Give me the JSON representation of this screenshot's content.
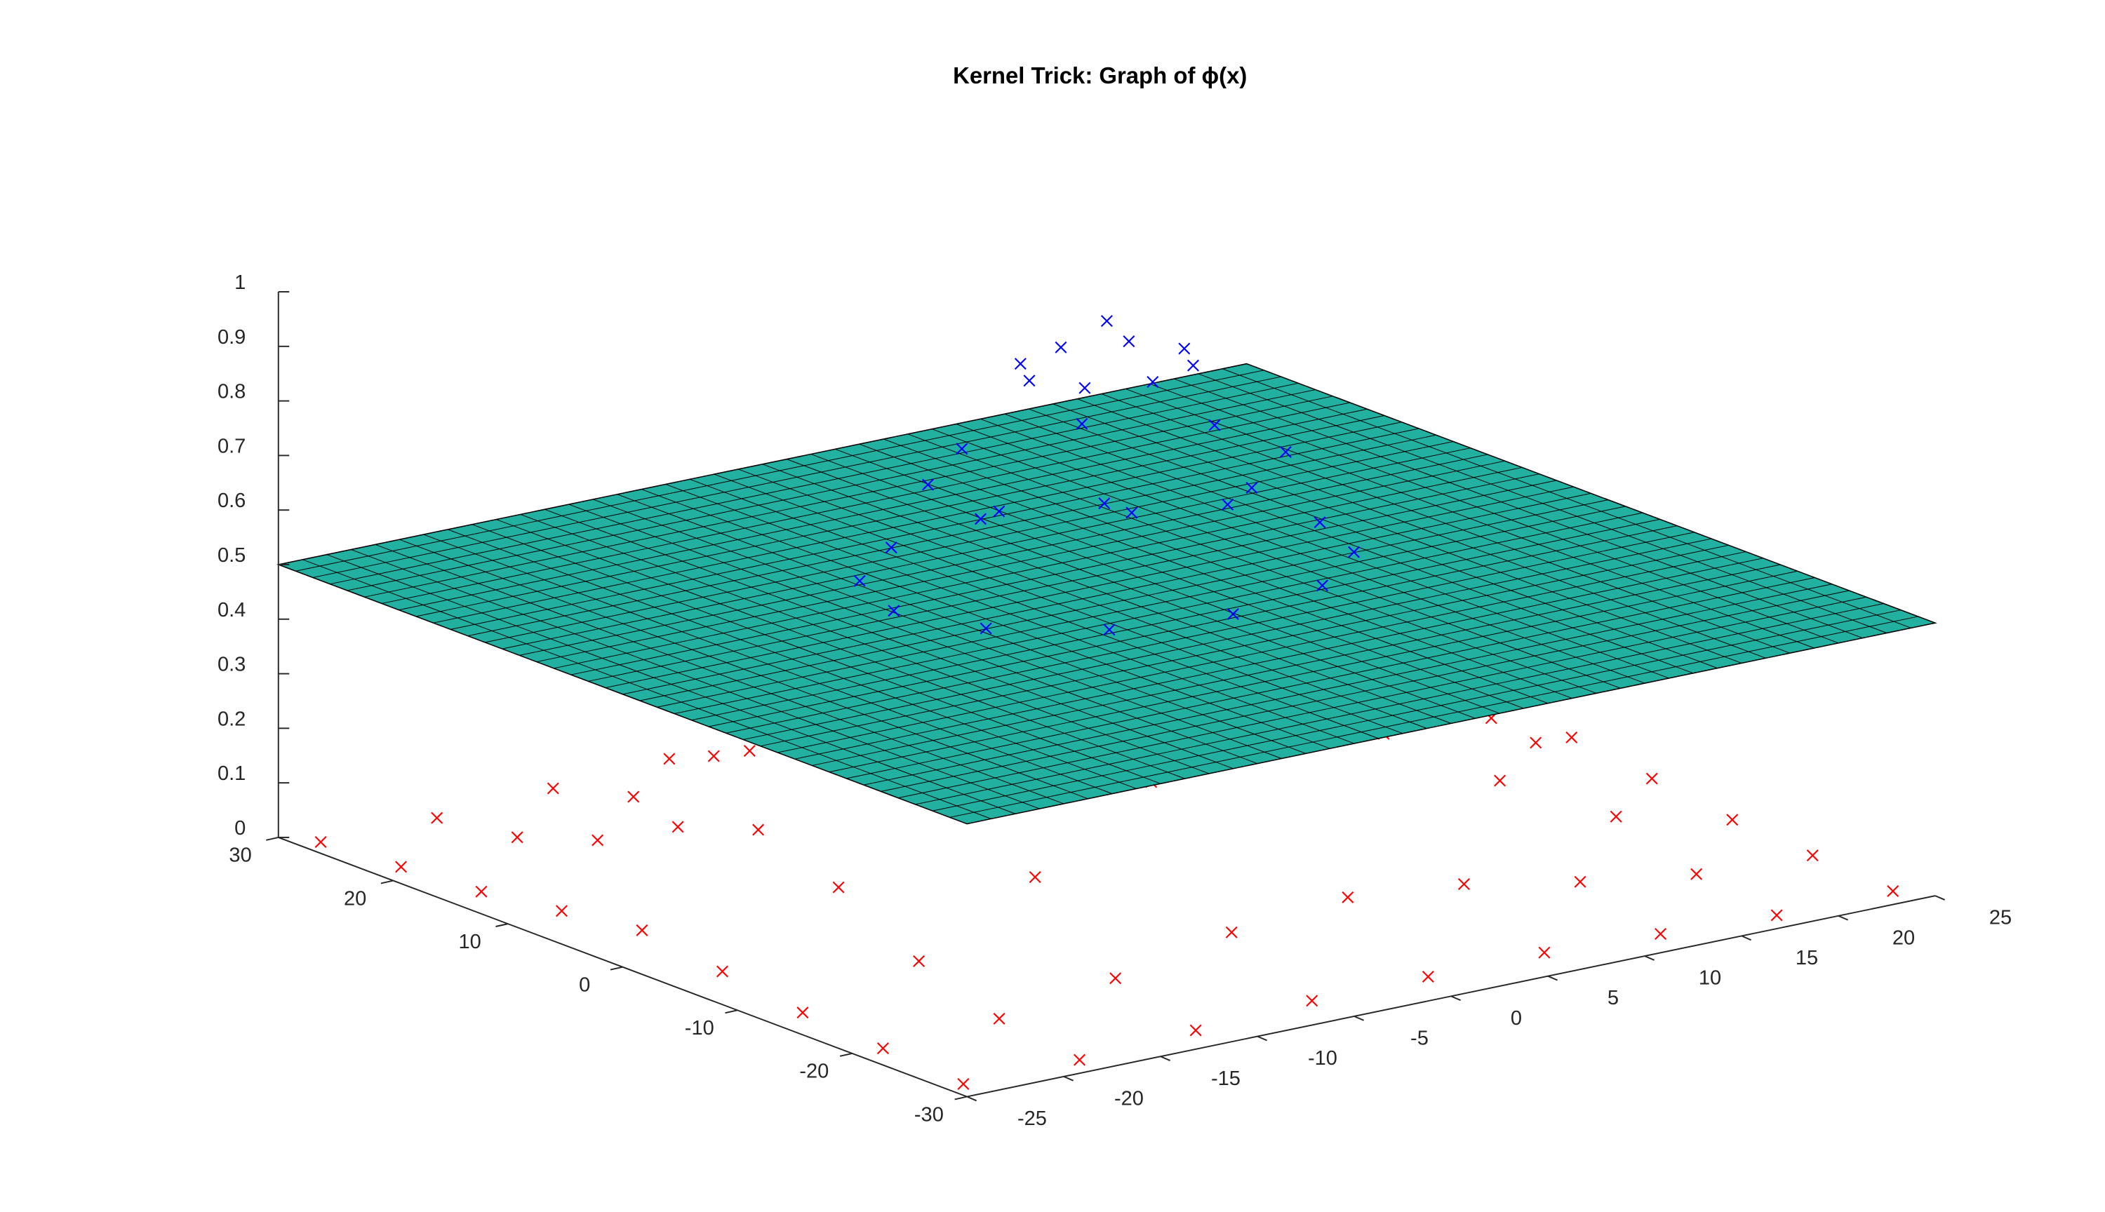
{
  "chart_data": {
    "type": "scatter3d",
    "title": "Kernel Trick: Graph of ϕ(x)",
    "xlim": [
      -25,
      25
    ],
    "xticks": [
      -25,
      -20,
      -15,
      -10,
      -5,
      0,
      5,
      10,
      15,
      20,
      25
    ],
    "ylim": [
      -30,
      30
    ],
    "yticks": [
      -30,
      -20,
      -10,
      0,
      10,
      20,
      30
    ],
    "zlim": [
      0,
      1
    ],
    "zticks": [
      0,
      0.1,
      0.2,
      0.3,
      0.4,
      0.5,
      0.6,
      0.7,
      0.8,
      0.9,
      1
    ],
    "surface": {
      "z": 0.5,
      "color": "#22b1a1"
    },
    "series": [
      {
        "color": "#ff0000",
        "x": [
          -24,
          -18,
          -12,
          -6,
          0,
          6,
          12,
          18,
          24
        ],
        "y": [
          -28,
          -21,
          -14,
          -7,
          0,
          7,
          14,
          21,
          28
        ],
        "z": [
          [
            0.0,
            0.0,
            0.01,
            0.02,
            0.02,
            0.02,
            0.01,
            0.0,
            0.0
          ],
          [
            0.01,
            0.02,
            0.05,
            0.09,
            0.11,
            0.09,
            0.05,
            0.02,
            0.01
          ],
          [
            0.02,
            0.07,
            0.18,
            0.31,
            0.38,
            0.31,
            0.18,
            0.07,
            0.02
          ],
          [
            0.04,
            0.15,
            0.38,
            null,
            null,
            null,
            0.38,
            0.15,
            0.04
          ],
          [
            0.06,
            0.2,
            0.49,
            null,
            null,
            null,
            0.49,
            0.2,
            0.06
          ],
          [
            0.04,
            0.15,
            0.38,
            null,
            null,
            null,
            0.38,
            0.15,
            0.04
          ],
          [
            0.02,
            0.07,
            0.18,
            0.31,
            0.38,
            0.31,
            0.18,
            0.07,
            0.02
          ],
          [
            0.01,
            0.02,
            0.05,
            0.09,
            0.11,
            0.09,
            0.05,
            0.02,
            0.01
          ],
          [
            0.0,
            0.0,
            0.01,
            0.02,
            0.02,
            0.02,
            0.01,
            0.0,
            0.0
          ]
        ]
      },
      {
        "color": "#0000ff",
        "x": [
          0,
          4,
          2.8,
          0,
          -2.8,
          -4,
          -2.8,
          0,
          2.8,
          7.4,
          3.1,
          -3.1,
          -7.4,
          -7.4,
          -3.1,
          3.1,
          7.4,
          11,
          9.5,
          5.5,
          0,
          -5.5,
          -9.5,
          -11,
          -9.5,
          -5.5,
          0,
          5.5,
          9.5
        ],
        "y": [
          0,
          0,
          2.8,
          4,
          2.8,
          0,
          -2.8,
          -4,
          -2.8,
          3.1,
          7.4,
          7.4,
          3.1,
          -3.1,
          -7.4,
          -7.4,
          -3.1,
          0,
          5.5,
          9.5,
          11,
          9.5,
          5.5,
          0,
          -5.5,
          -9.5,
          -11,
          -9.5,
          -5.5
        ],
        "z": [
          1,
          0.92,
          0.92,
          0.92,
          0.92,
          0.92,
          0.92,
          0.92,
          0.92,
          0.73,
          0.73,
          0.73,
          0.73,
          0.73,
          0.73,
          0.73,
          0.73,
          0.55,
          0.55,
          0.55,
          0.55,
          0.55,
          0.55,
          0.55,
          0.55,
          0.55,
          0.55,
          0.55,
          0.55
        ]
      }
    ]
  }
}
